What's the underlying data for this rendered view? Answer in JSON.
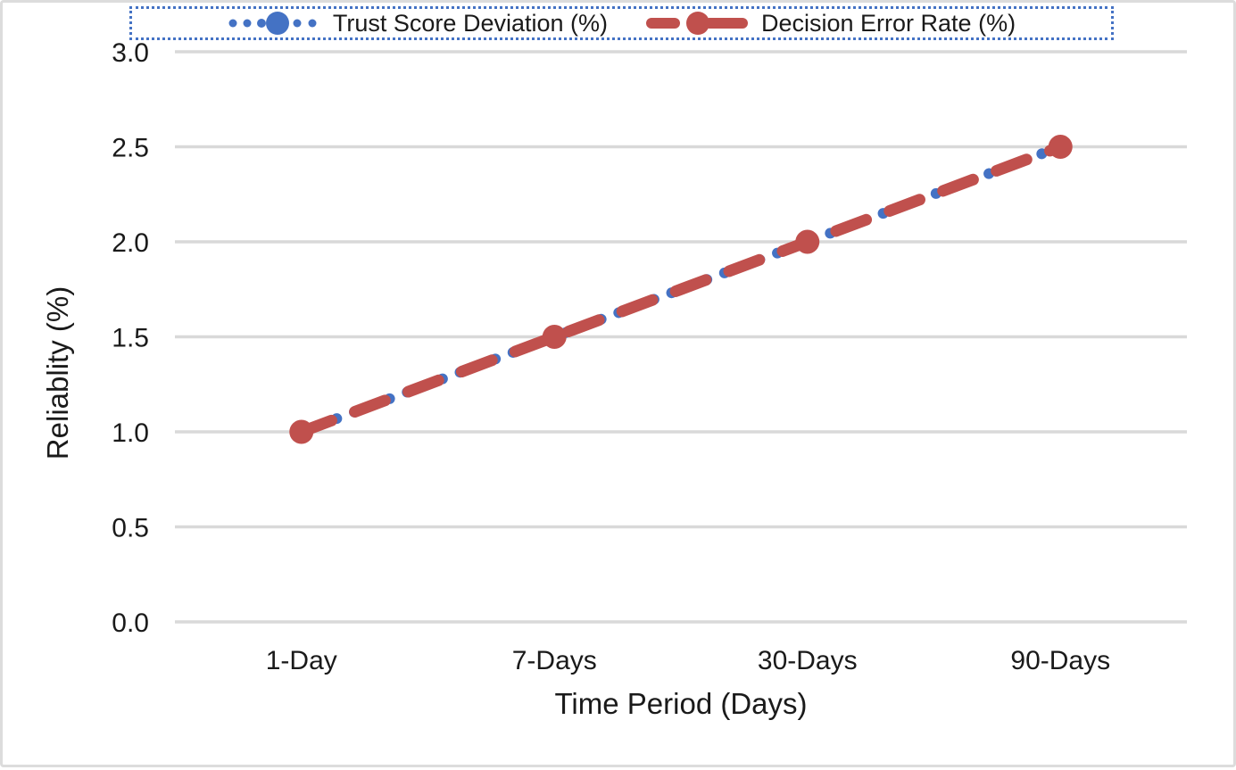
{
  "colors": {
    "series_blue": "#4472C4",
    "series_red": "#C0504D",
    "gridline": "#D9D9D9",
    "text": "#1a1a1a",
    "legend_border": "#4472C4",
    "frame_border": "#dcdcdc"
  },
  "chart_data": {
    "type": "line",
    "categories": [
      "1-Day",
      "7-Days",
      "30-Days",
      "90-Days"
    ],
    "series": [
      {
        "name": "Trust Score Deviation (%)",
        "values": [
          1.0,
          1.5,
          2.0,
          2.5
        ],
        "color": "#4472C4",
        "line_style": "dotted",
        "marker": "circle"
      },
      {
        "name": "Decision Error Rate (%)",
        "values": [
          1.0,
          1.5,
          2.0,
          2.5
        ],
        "color": "#C0504D",
        "line_style": "dashed",
        "marker": "circle"
      }
    ],
    "title": "",
    "xlabel": "Time Period (Days)",
    "ylabel": "Reliablity (%)",
    "ylim": [
      0,
      3
    ],
    "y_ticks": [
      "0.0",
      "0.5",
      "1.0",
      "1.5",
      "2.0",
      "2.5",
      "3.0"
    ],
    "grid": "horizontal",
    "legend_position": "top",
    "legend_selected": true
  }
}
